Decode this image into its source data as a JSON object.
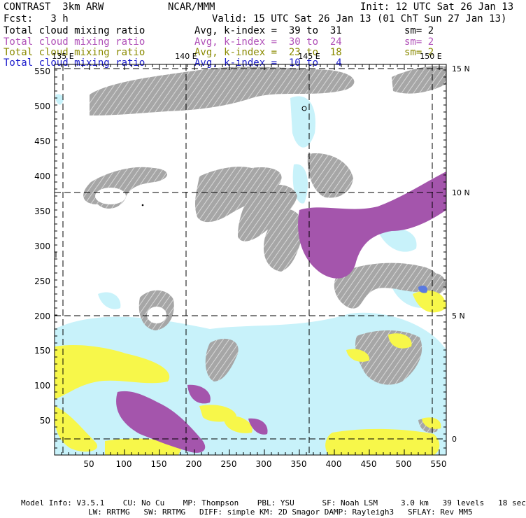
{
  "header": {
    "model_name": "CONTRAST  3km ARW",
    "institution": "NCAR/MMM",
    "init_time": "Init: 12 UTC Sat 26 Jan 13",
    "forecast": "Fcst:   3 h",
    "valid_time": "Valid: 15 UTC Sat 26 Jan 13 (01 ChT Sun 27 Jan 13)"
  },
  "legend": [
    {
      "field": "Total cloud mixing ratio",
      "kindex": "Avg, k-index =  39 to  31",
      "smooth": "sm= 2",
      "color": "#000000"
    },
    {
      "field": "Total cloud mixing ratio",
      "kindex": "Avg, k-index =  30 to  24",
      "smooth": "sm= 2",
      "color": "#b050b8"
    },
    {
      "field": "Total cloud mixing ratio",
      "kindex": "Avg, k-index =  23 to  18",
      "smooth": "sm= 2",
      "color": "#8a8a00"
    },
    {
      "field": "Total cloud mixing ratio",
      "kindex": "Avg, k-index =  10 to   4",
      "smooth": "",
      "color": "#1a1acc"
    }
  ],
  "map": {
    "x_ticks": [
      "50",
      "100",
      "150",
      "200",
      "250",
      "300",
      "350",
      "400",
      "450",
      "500",
      "550"
    ],
    "y_ticks": [
      "50",
      "100",
      "150",
      "200",
      "250",
      "300",
      "350",
      "400",
      "450",
      "500",
      "550"
    ],
    "lon_labels": [
      "135 E",
      "140 E",
      "145 E",
      "150 E"
    ],
    "lat_labels": [
      "15 N",
      "10 N",
      "5 N",
      "0"
    ],
    "colors": {
      "gray": "#999999",
      "purple": "#a455ac",
      "yellow": "#f7f74a",
      "cyan": "#c8f2fa"
    }
  },
  "footer": {
    "line1": "Model Info: V3.5.1    CU: No Cu    MP: Thompson    PBL: YSU      SF: Noah LSM     3.0 km   39 levels   18 sec",
    "line2": "LW: RRTMG   SW: RRTMG   DIFF: simple KM: 2D Smagor DAMP: Rayleigh3   SFLAY: Rev MM5"
  }
}
